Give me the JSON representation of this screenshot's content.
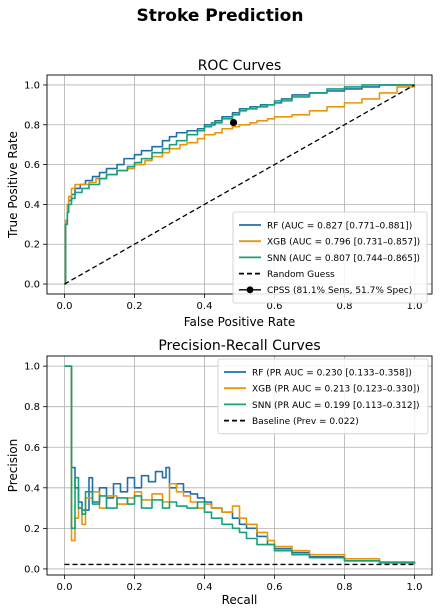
{
  "figure": {
    "suptitle": "Stroke Prediction"
  },
  "colors": {
    "rf": "#1f6fa8",
    "xgb": "#e8960c",
    "snn": "#17a07a",
    "baseline": "#000000",
    "cpss": "#000000",
    "grid": "#b0b0b0"
  },
  "chart_data": [
    {
      "type": "line",
      "title": "ROC Curves",
      "xlabel": "False Positive Rate",
      "ylabel": "True Positive Rate",
      "xlim": [
        -0.05,
        1.05
      ],
      "ylim": [
        -0.05,
        1.05
      ],
      "xticks": [
        "0.0",
        "0.2",
        "0.4",
        "0.6",
        "0.8",
        "1.0"
      ],
      "yticks": [
        "0.0",
        "0.2",
        "0.4",
        "0.6",
        "0.8",
        "1.0"
      ],
      "grid": true,
      "legend_position": "lower-right",
      "series": [
        {
          "name": "RF (AUC = 0.827 [0.771–0.881])",
          "color": "#1f6fa8",
          "x": [
            0,
            0.003,
            0.008,
            0.012,
            0.02,
            0.03,
            0.045,
            0.06,
            0.08,
            0.1,
            0.12,
            0.15,
            0.17,
            0.2,
            0.22,
            0.25,
            0.28,
            0.3,
            0.32,
            0.35,
            0.38,
            0.4,
            0.43,
            0.45,
            0.48,
            0.5,
            0.53,
            0.56,
            0.6,
            0.62,
            0.65,
            0.7,
            0.75,
            0.8,
            0.85,
            0.9,
            0.95,
            1.0
          ],
          "y": [
            0,
            0.3,
            0.38,
            0.42,
            0.45,
            0.48,
            0.5,
            0.52,
            0.54,
            0.56,
            0.58,
            0.6,
            0.63,
            0.65,
            0.67,
            0.69,
            0.72,
            0.74,
            0.76,
            0.77,
            0.78,
            0.8,
            0.82,
            0.84,
            0.86,
            0.88,
            0.89,
            0.9,
            0.91,
            0.93,
            0.95,
            0.96,
            0.97,
            0.98,
            0.99,
            1.0,
            1.0,
            1.0
          ]
        },
        {
          "name": "XGB (AUC = 0.796 [0.731–0.857])",
          "color": "#e8960c",
          "x": [
            0,
            0.003,
            0.008,
            0.012,
            0.02,
            0.03,
            0.05,
            0.07,
            0.09,
            0.12,
            0.15,
            0.18,
            0.2,
            0.23,
            0.25,
            0.28,
            0.3,
            0.33,
            0.35,
            0.38,
            0.4,
            0.43,
            0.45,
            0.48,
            0.5,
            0.53,
            0.55,
            0.58,
            0.6,
            0.65,
            0.7,
            0.75,
            0.8,
            0.85,
            0.9,
            0.95,
            1.0
          ],
          "y": [
            0,
            0.32,
            0.4,
            0.44,
            0.48,
            0.5,
            0.5,
            0.51,
            0.53,
            0.55,
            0.57,
            0.58,
            0.6,
            0.62,
            0.64,
            0.66,
            0.68,
            0.7,
            0.71,
            0.73,
            0.75,
            0.76,
            0.78,
            0.79,
            0.8,
            0.81,
            0.82,
            0.83,
            0.84,
            0.85,
            0.87,
            0.89,
            0.91,
            0.93,
            0.96,
            0.99,
            1.0
          ]
        },
        {
          "name": "SNN (AUC = 0.807 [0.744–0.865])",
          "color": "#17a07a",
          "x": [
            0,
            0.003,
            0.008,
            0.012,
            0.02,
            0.03,
            0.05,
            0.07,
            0.1,
            0.12,
            0.15,
            0.18,
            0.2,
            0.22,
            0.25,
            0.28,
            0.3,
            0.32,
            0.35,
            0.38,
            0.4,
            0.42,
            0.45,
            0.48,
            0.5,
            0.52,
            0.55,
            0.58,
            0.6,
            0.65,
            0.7,
            0.75,
            0.8,
            0.85,
            0.9,
            0.95,
            1.0
          ],
          "y": [
            0,
            0.3,
            0.36,
            0.4,
            0.43,
            0.46,
            0.48,
            0.5,
            0.53,
            0.55,
            0.57,
            0.59,
            0.61,
            0.63,
            0.66,
            0.68,
            0.7,
            0.72,
            0.75,
            0.77,
            0.79,
            0.81,
            0.83,
            0.85,
            0.87,
            0.88,
            0.89,
            0.9,
            0.92,
            0.94,
            0.96,
            0.98,
            0.99,
            1.0,
            1.0,
            1.0,
            1.0
          ]
        },
        {
          "name": "Random Guess",
          "color": "#000000",
          "style": "dashed",
          "x": [
            0,
            1
          ],
          "y": [
            0,
            1
          ]
        }
      ],
      "points": [
        {
          "name": "CPSS (81.1% Sens, 51.7% Spec)",
          "x": 0.483,
          "y": 0.811,
          "color": "#000000"
        }
      ]
    },
    {
      "type": "line",
      "title": "Precision-Recall Curves",
      "xlabel": "Recall",
      "ylabel": "Precision",
      "xlim": [
        -0.05,
        1.05
      ],
      "ylim": [
        -0.03,
        1.05
      ],
      "xticks": [
        "0.0",
        "0.2",
        "0.4",
        "0.6",
        "0.8",
        "1.0"
      ],
      "yticks": [
        "0.0",
        "0.2",
        "0.4",
        "0.6",
        "0.8",
        "1.0"
      ],
      "grid": true,
      "legend_position": "top-right",
      "series": [
        {
          "name": "RF (PR AUC = 0.230 [0.133–0.358])",
          "color": "#1f6fa8",
          "x": [
            0,
            0.015,
            0.02,
            0.03,
            0.04,
            0.05,
            0.07,
            0.08,
            0.1,
            0.12,
            0.14,
            0.16,
            0.18,
            0.2,
            0.22,
            0.24,
            0.26,
            0.28,
            0.29,
            0.3,
            0.32,
            0.34,
            0.36,
            0.38,
            0.4,
            0.42,
            0.45,
            0.48,
            0.5,
            0.52,
            0.55,
            0.58,
            0.6,
            0.65,
            0.7,
            0.8,
            0.9,
            1.0
          ],
          "y": [
            1.0,
            1.0,
            0.5,
            0.4,
            0.33,
            0.29,
            0.45,
            0.33,
            0.4,
            0.35,
            0.42,
            0.38,
            0.45,
            0.4,
            0.46,
            0.43,
            0.48,
            0.45,
            0.5,
            0.4,
            0.42,
            0.38,
            0.37,
            0.35,
            0.33,
            0.3,
            0.28,
            0.25,
            0.22,
            0.2,
            0.16,
            0.12,
            0.1,
            0.08,
            0.06,
            0.04,
            0.035,
            0.03
          ]
        },
        {
          "name": "XGB (PR AUC = 0.213 [0.123–0.330])",
          "color": "#e8960c",
          "x": [
            0,
            0.015,
            0.02,
            0.03,
            0.04,
            0.05,
            0.06,
            0.08,
            0.1,
            0.12,
            0.15,
            0.18,
            0.2,
            0.22,
            0.25,
            0.28,
            0.3,
            0.32,
            0.34,
            0.36,
            0.38,
            0.4,
            0.42,
            0.45,
            0.48,
            0.5,
            0.52,
            0.55,
            0.58,
            0.6,
            0.65,
            0.7,
            0.8,
            0.9,
            1.0
          ],
          "y": [
            1.0,
            1.0,
            0.14,
            0.25,
            0.3,
            0.22,
            0.35,
            0.38,
            0.3,
            0.36,
            0.32,
            0.35,
            0.38,
            0.34,
            0.37,
            0.33,
            0.42,
            0.38,
            0.36,
            0.33,
            0.3,
            0.32,
            0.3,
            0.28,
            0.31,
            0.25,
            0.22,
            0.18,
            0.14,
            0.11,
            0.09,
            0.07,
            0.05,
            0.035,
            0.028
          ]
        },
        {
          "name": "SNN (PR AUC = 0.199 [0.113–0.312])",
          "color": "#17a07a",
          "x": [
            0,
            0.015,
            0.02,
            0.03,
            0.04,
            0.05,
            0.06,
            0.08,
            0.1,
            0.12,
            0.15,
            0.18,
            0.2,
            0.22,
            0.25,
            0.28,
            0.3,
            0.32,
            0.35,
            0.38,
            0.4,
            0.42,
            0.45,
            0.48,
            0.5,
            0.52,
            0.55,
            0.6,
            0.65,
            0.7,
            0.8,
            0.9,
            1.0
          ],
          "y": [
            1.0,
            1.0,
            0.2,
            0.45,
            0.3,
            0.27,
            0.38,
            0.32,
            0.36,
            0.3,
            0.35,
            0.32,
            0.36,
            0.3,
            0.34,
            0.3,
            0.33,
            0.31,
            0.3,
            0.33,
            0.28,
            0.25,
            0.22,
            0.2,
            0.18,
            0.15,
            0.12,
            0.09,
            0.07,
            0.055,
            0.04,
            0.03,
            0.025
          ]
        },
        {
          "name": "Baseline (Prev = 0.022)",
          "color": "#000000",
          "style": "dashed",
          "x": [
            0,
            1
          ],
          "y": [
            0.022,
            0.022
          ]
        }
      ]
    }
  ]
}
